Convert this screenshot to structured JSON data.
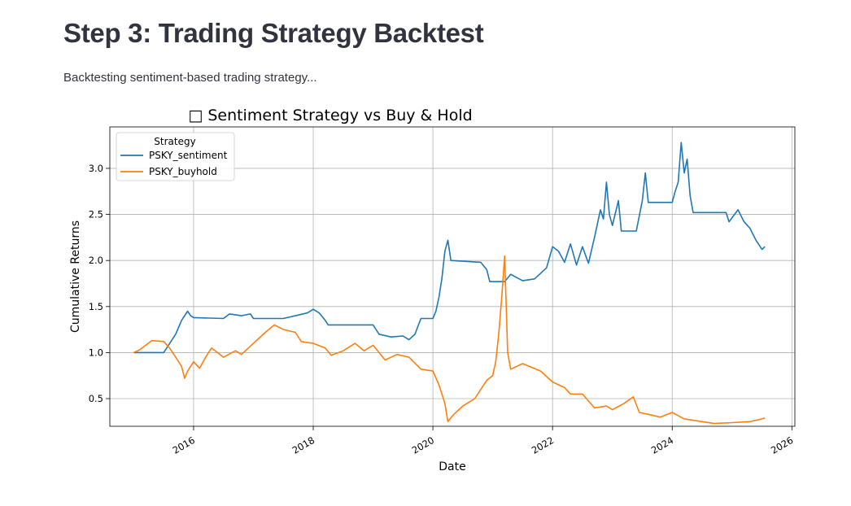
{
  "page": {
    "title": "Step 3: Trading Strategy Backtest",
    "caption": "Backtesting sentiment-based trading strategy..."
  },
  "colors": {
    "sentiment": "#1f77b4",
    "buyhold": "#ff7f0e",
    "grid": "#b0b0b0",
    "axis": "#000000"
  },
  "chart_data": {
    "type": "line",
    "title": "□ Sentiment Strategy vs Buy & Hold",
    "xlabel": "Date",
    "ylabel": "Cumulative Returns",
    "xlim": [
      2014.6,
      2026.05
    ],
    "ylim": [
      0.2,
      3.45
    ],
    "x_ticks": [
      2016,
      2018,
      2020,
      2022,
      2024,
      2026
    ],
    "x_tick_labels": [
      "2016",
      "2018",
      "2020",
      "2022",
      "2024",
      "2026"
    ],
    "y_ticks": [
      0.5,
      1.0,
      1.5,
      2.0,
      2.5,
      3.0
    ],
    "y_tick_labels": [
      "0.5",
      "1.0",
      "1.5",
      "2.0",
      "2.5",
      "3.0"
    ],
    "grid": true,
    "legend": {
      "title": "Strategy",
      "placement": "top-left"
    },
    "series": [
      {
        "name": "PSKY_sentiment",
        "color": "#1f77b4",
        "points": [
          [
            2015.0,
            1.0
          ],
          [
            2015.5,
            1.0
          ],
          [
            2015.7,
            1.2
          ],
          [
            2015.8,
            1.35
          ],
          [
            2015.9,
            1.45
          ],
          [
            2015.95,
            1.4
          ],
          [
            2016.0,
            1.38
          ],
          [
            2016.5,
            1.37
          ],
          [
            2016.6,
            1.42
          ],
          [
            2016.8,
            1.4
          ],
          [
            2016.95,
            1.42
          ],
          [
            2017.0,
            1.37
          ],
          [
            2017.5,
            1.37
          ],
          [
            2017.9,
            1.43
          ],
          [
            2018.0,
            1.47
          ],
          [
            2018.1,
            1.43
          ],
          [
            2018.2,
            1.35
          ],
          [
            2018.25,
            1.3
          ],
          [
            2019.0,
            1.3
          ],
          [
            2019.1,
            1.2
          ],
          [
            2019.3,
            1.17
          ],
          [
            2019.5,
            1.18
          ],
          [
            2019.6,
            1.14
          ],
          [
            2019.7,
            1.2
          ],
          [
            2019.8,
            1.37
          ],
          [
            2020.0,
            1.37
          ],
          [
            2020.05,
            1.45
          ],
          [
            2020.1,
            1.6
          ],
          [
            2020.15,
            1.8
          ],
          [
            2020.2,
            2.1
          ],
          [
            2020.25,
            2.22
          ],
          [
            2020.3,
            2.0
          ],
          [
            2020.8,
            1.98
          ],
          [
            2020.9,
            1.9
          ],
          [
            2020.95,
            1.77
          ],
          [
            2021.2,
            1.77
          ],
          [
            2021.3,
            1.85
          ],
          [
            2021.5,
            1.78
          ],
          [
            2021.7,
            1.8
          ],
          [
            2021.9,
            1.92
          ],
          [
            2022.0,
            2.15
          ],
          [
            2022.1,
            2.1
          ],
          [
            2022.2,
            1.98
          ],
          [
            2022.3,
            2.18
          ],
          [
            2022.4,
            1.95
          ],
          [
            2022.5,
            2.15
          ],
          [
            2022.6,
            1.97
          ],
          [
            2022.7,
            2.25
          ],
          [
            2022.8,
            2.55
          ],
          [
            2022.85,
            2.45
          ],
          [
            2022.9,
            2.85
          ],
          [
            2022.95,
            2.5
          ],
          [
            2023.0,
            2.38
          ],
          [
            2023.1,
            2.65
          ],
          [
            2023.15,
            2.32
          ],
          [
            2023.4,
            2.32
          ],
          [
            2023.5,
            2.65
          ],
          [
            2023.55,
            2.95
          ],
          [
            2023.6,
            2.63
          ],
          [
            2024.0,
            2.63
          ],
          [
            2024.05,
            2.75
          ],
          [
            2024.1,
            2.85
          ],
          [
            2024.15,
            3.28
          ],
          [
            2024.2,
            2.95
          ],
          [
            2024.25,
            3.1
          ],
          [
            2024.3,
            2.7
          ],
          [
            2024.35,
            2.52
          ],
          [
            2024.9,
            2.52
          ],
          [
            2024.95,
            2.42
          ],
          [
            2025.1,
            2.55
          ],
          [
            2025.2,
            2.42
          ],
          [
            2025.3,
            2.35
          ],
          [
            2025.4,
            2.22
          ],
          [
            2025.5,
            2.12
          ],
          [
            2025.55,
            2.15
          ]
        ]
      },
      {
        "name": "PSKY_buyhold",
        "color": "#ff7f0e",
        "points": [
          [
            2015.0,
            1.0
          ],
          [
            2015.1,
            1.03
          ],
          [
            2015.2,
            1.08
          ],
          [
            2015.3,
            1.13
          ],
          [
            2015.5,
            1.12
          ],
          [
            2015.6,
            1.05
          ],
          [
            2015.7,
            0.95
          ],
          [
            2015.8,
            0.85
          ],
          [
            2015.85,
            0.72
          ],
          [
            2015.9,
            0.8
          ],
          [
            2016.0,
            0.9
          ],
          [
            2016.1,
            0.83
          ],
          [
            2016.2,
            0.95
          ],
          [
            2016.3,
            1.05
          ],
          [
            2016.5,
            0.95
          ],
          [
            2016.7,
            1.02
          ],
          [
            2016.8,
            0.98
          ],
          [
            2017.0,
            1.1
          ],
          [
            2017.2,
            1.22
          ],
          [
            2017.35,
            1.3
          ],
          [
            2017.5,
            1.25
          ],
          [
            2017.7,
            1.22
          ],
          [
            2017.8,
            1.12
          ],
          [
            2018.0,
            1.1
          ],
          [
            2018.2,
            1.05
          ],
          [
            2018.3,
            0.97
          ],
          [
            2018.5,
            1.02
          ],
          [
            2018.7,
            1.1
          ],
          [
            2018.85,
            1.02
          ],
          [
            2019.0,
            1.08
          ],
          [
            2019.1,
            1.0
          ],
          [
            2019.2,
            0.92
          ],
          [
            2019.4,
            0.98
          ],
          [
            2019.6,
            0.95
          ],
          [
            2019.8,
            0.82
          ],
          [
            2020.0,
            0.8
          ],
          [
            2020.1,
            0.65
          ],
          [
            2020.2,
            0.45
          ],
          [
            2020.25,
            0.25
          ],
          [
            2020.35,
            0.33
          ],
          [
            2020.5,
            0.42
          ],
          [
            2020.7,
            0.5
          ],
          [
            2020.9,
            0.7
          ],
          [
            2021.0,
            0.75
          ],
          [
            2021.05,
            0.9
          ],
          [
            2021.1,
            1.2
          ],
          [
            2021.15,
            1.6
          ],
          [
            2021.2,
            2.05
          ],
          [
            2021.25,
            1.0
          ],
          [
            2021.3,
            0.82
          ],
          [
            2021.5,
            0.88
          ],
          [
            2021.8,
            0.8
          ],
          [
            2022.0,
            0.68
          ],
          [
            2022.2,
            0.62
          ],
          [
            2022.3,
            0.55
          ],
          [
            2022.5,
            0.55
          ],
          [
            2022.7,
            0.4
          ],
          [
            2022.9,
            0.42
          ],
          [
            2023.0,
            0.38
          ],
          [
            2023.2,
            0.45
          ],
          [
            2023.35,
            0.52
          ],
          [
            2023.45,
            0.35
          ],
          [
            2023.6,
            0.33
          ],
          [
            2023.8,
            0.3
          ],
          [
            2024.0,
            0.35
          ],
          [
            2024.2,
            0.28
          ],
          [
            2024.5,
            0.25
          ],
          [
            2024.7,
            0.23
          ],
          [
            2025.0,
            0.24
          ],
          [
            2025.3,
            0.25
          ],
          [
            2025.5,
            0.28
          ],
          [
            2025.55,
            0.29
          ]
        ]
      }
    ]
  }
}
